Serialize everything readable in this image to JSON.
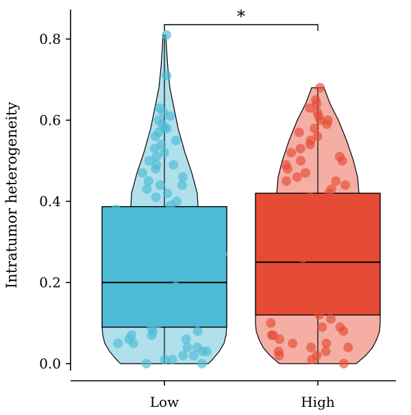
{
  "chart_data": {
    "type": "box",
    "ylabel": "Intratumor heterogeneity",
    "xlabel": "",
    "ylim": [
      0,
      0.8
    ],
    "yticks": [
      "0.0",
      "0.2",
      "0.4",
      "0.6",
      "0.8"
    ],
    "categories": [
      "Low",
      "High"
    ],
    "significance": {
      "between": [
        "Low",
        "High"
      ],
      "label": "*"
    },
    "colors": {
      "Low": "#4DBBD5",
      "High": "#E64B35"
    },
    "groups": [
      {
        "name": "Low",
        "box": {
          "q1": 0.09,
          "median": 0.2,
          "q3": 0.387
        },
        "max": 0.81,
        "points": [
          0.81,
          0.71,
          0.63,
          0.62,
          0.61,
          0.6,
          0.59,
          0.58,
          0.58,
          0.57,
          0.56,
          0.55,
          0.54,
          0.53,
          0.52,
          0.51,
          0.5,
          0.49,
          0.49,
          0.48,
          0.47,
          0.46,
          0.45,
          0.44,
          0.44,
          0.43,
          0.42,
          0.41,
          0.4,
          0.39,
          0.38,
          0.36,
          0.34,
          0.3,
          0.27,
          0.25,
          0.22,
          0.19,
          0.16,
          0.13,
          0.11,
          0.1,
          0.09,
          0.08,
          0.08,
          0.07,
          0.07,
          0.06,
          0.06,
          0.05,
          0.05,
          0.04,
          0.04,
          0.03,
          0.03,
          0.02,
          0.02,
          0.01,
          0.01,
          0.0,
          0.0
        ]
      },
      {
        "name": "High",
        "box": {
          "q1": 0.12,
          "median": 0.25,
          "q3": 0.42
        },
        "max": 0.68,
        "points": [
          0.68,
          0.65,
          0.64,
          0.63,
          0.62,
          0.61,
          0.6,
          0.6,
          0.59,
          0.58,
          0.57,
          0.56,
          0.55,
          0.54,
          0.53,
          0.52,
          0.51,
          0.5,
          0.5,
          0.49,
          0.48,
          0.47,
          0.46,
          0.45,
          0.45,
          0.44,
          0.43,
          0.42,
          0.41,
          0.4,
          0.38,
          0.35,
          0.33,
          0.3,
          0.28,
          0.26,
          0.23,
          0.21,
          0.18,
          0.16,
          0.14,
          0.12,
          0.11,
          0.1,
          0.09,
          0.09,
          0.08,
          0.07,
          0.07,
          0.06,
          0.05,
          0.05,
          0.04,
          0.04,
          0.03,
          0.03,
          0.02,
          0.02,
          0.01,
          0.0
        ]
      }
    ]
  }
}
